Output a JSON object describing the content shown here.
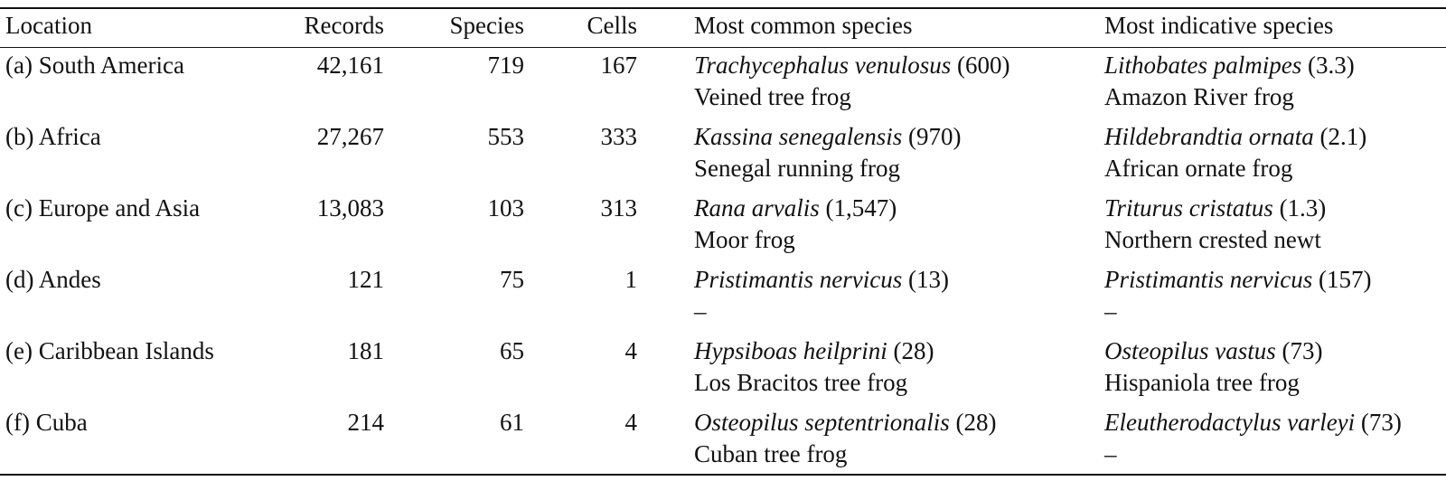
{
  "headers": {
    "location": "Location",
    "records": "Records",
    "species": "Species",
    "cells": "Cells",
    "most_common": "Most common species",
    "most_indicative": "Most indicative species"
  },
  "rows": [
    {
      "location": "(a) South America",
      "records": "42,161",
      "species": "719",
      "cells": "167",
      "common_sci": "Trachycephalus venulosus",
      "common_val": " (600)",
      "common_name": "Veined tree frog",
      "ind_sci": "Lithobates palmipes",
      "ind_val": " (3.3)",
      "ind_name": "Amazon River frog"
    },
    {
      "location": "(b) Africa",
      "records": "27,267",
      "species": "553",
      "cells": "333",
      "common_sci": "Kassina senegalensis",
      "common_val": " (970)",
      "common_name": "Senegal running frog",
      "ind_sci": "Hildebrandtia ornata",
      "ind_val": " (2.1)",
      "ind_name": "African ornate frog"
    },
    {
      "location": "(c) Europe and Asia",
      "records": "13,083",
      "species": "103",
      "cells": "313",
      "common_sci": "Rana arvalis",
      "common_val": " (1,547)",
      "common_name": "Moor frog",
      "ind_sci": "Triturus cristatus",
      "ind_val": " (1.3)",
      "ind_name": "Northern crested newt"
    },
    {
      "location": "(d) Andes",
      "records": "121",
      "species": "75",
      "cells": "1",
      "common_sci": "Pristimantis nervicus",
      "common_val": " (13)",
      "common_name": "–",
      "ind_sci": "Pristimantis nervicus",
      "ind_val": " (157)",
      "ind_name": "–"
    },
    {
      "location": "(e) Caribbean Islands",
      "records": "181",
      "species": "65",
      "cells": "4",
      "common_sci": "Hypsiboas heilprini",
      "common_val": " (28)",
      "common_name": "Los Bracitos tree frog",
      "ind_sci": "Osteopilus vastus",
      "ind_val": " (73)",
      "ind_name": "Hispaniola tree frog"
    },
    {
      "location": "(f) Cuba",
      "records": "214",
      "species": "61",
      "cells": "4",
      "common_sci": "Osteopilus septentrionalis",
      "common_val": " (28)",
      "common_name": "Cuban tree frog",
      "ind_sci": "Eleutherodactylus varleyi",
      "ind_val": " (73)",
      "ind_name": "–"
    }
  ]
}
